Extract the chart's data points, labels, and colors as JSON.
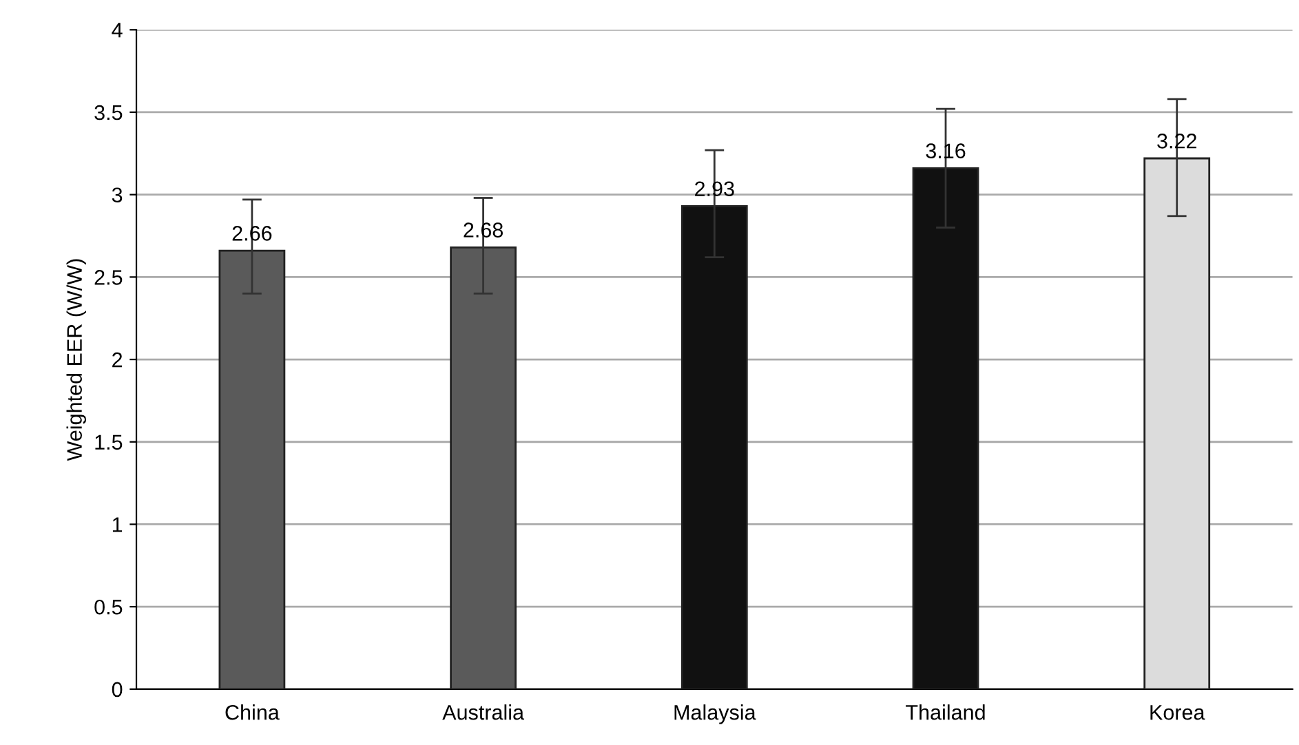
{
  "chart_data": {
    "type": "bar",
    "ylabel": "Weighted EER (W/W)",
    "categories": [
      "China",
      "Australia",
      "Malaysia",
      "Thailand",
      "Korea"
    ],
    "values": [
      2.66,
      2.68,
      2.93,
      3.16,
      3.22
    ],
    "colors": [
      "#5a5a5a",
      "#5a5a5a",
      "#111111",
      "#111111",
      "#dcdcdc"
    ],
    "errors": [
      [
        2.4,
        2.97
      ],
      [
        2.4,
        2.98
      ],
      [
        2.62,
        3.27
      ],
      [
        2.8,
        3.52
      ],
      [
        2.87,
        3.58
      ]
    ],
    "data_labels": true,
    "ylim": [
      0,
      4
    ],
    "yticks": [
      0,
      0.5,
      1,
      1.5,
      2,
      2.5,
      3,
      3.5,
      4
    ],
    "grid": "y"
  }
}
